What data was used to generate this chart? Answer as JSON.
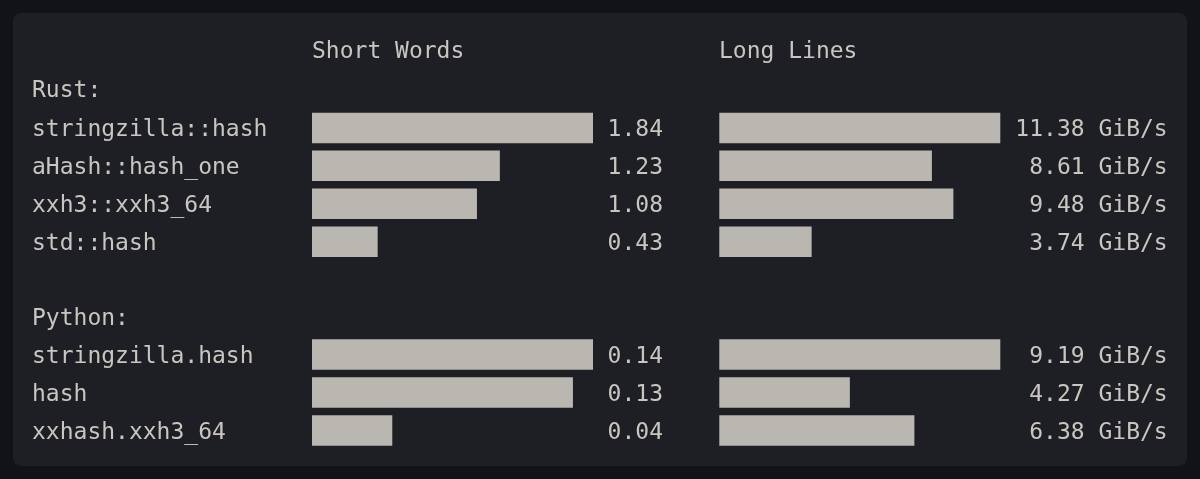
{
  "chart_data": [
    {
      "type": "bar",
      "orientation": "horizontal",
      "title": "Short Words",
      "ylabel": "Rust:",
      "categories": [
        "stringzilla::hash",
        "aHash::hash_one",
        "xxh3::xxh3_64",
        "std::hash"
      ],
      "values": [
        1.84,
        1.23,
        1.08,
        0.43
      ],
      "color": "#bab7b0",
      "xlim": [
        0,
        1.84
      ],
      "data_labels": true,
      "tick_labels": "y"
    },
    {
      "type": "bar",
      "orientation": "horizontal",
      "title": "Long Lines",
      "categories": [
        null,
        null,
        null,
        null
      ],
      "values": [
        11.38,
        8.61,
        9.48,
        3.74
      ],
      "value_labels": [
        "11.38 GiB/s",
        "8.61 GiB/s",
        "9.48 GiB/s",
        "3.74 GiB/s"
      ],
      "color": "#bab7b0",
      "xlim": [
        0,
        11.38
      ],
      "tick_labels": false
    },
    {
      "type": "bar",
      "orientation": "horizontal",
      "ylabel": "Python:",
      "categories": [
        "stringzilla.hash",
        "hash",
        "xxhash.xxh3_64"
      ],
      "values": [
        0.14,
        0.13,
        0.04
      ],
      "color": "#bab7b0",
      "xlim": [
        0,
        0.14
      ],
      "data_labels": true,
      "tick_labels": "y"
    },
    {
      "type": "bar",
      "orientation": "horizontal",
      "categories": [
        null,
        null,
        null
      ],
      "values": [
        9.19,
        4.27,
        6.38
      ],
      "value_labels": [
        "9.19 GiB/s",
        "4.27 GiB/s",
        "6.38 GiB/s"
      ],
      "color": "#bab7b0",
      "xlim": [
        0,
        9.19
      ],
      "tick_labels": false
    }
  ]
}
